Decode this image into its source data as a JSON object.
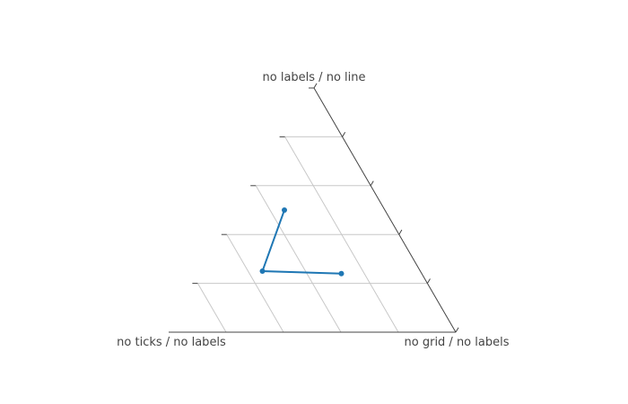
{
  "chart_data": {
    "type": "ternary-scatter",
    "colors": {
      "trace": "#1f77b4",
      "axis": "#444444",
      "grid": "#c8c8c8",
      "background": "#ffffff"
    },
    "axes": {
      "a": {
        "title": "no labels / no line",
        "ticks": [
          0.2,
          0.4,
          0.6,
          0.8
        ],
        "grid": true,
        "showline": false,
        "ticklabels": false
      },
      "b": {
        "title": "no ticks / no labels",
        "ticks": [
          0.2,
          0.4,
          0.6,
          0.8
        ],
        "grid": true,
        "showline": true,
        "showticks": false,
        "ticklabels": false
      },
      "c": {
        "title": "no grid / no labels",
        "ticks": [
          0.2,
          0.4,
          0.6,
          0.8
        ],
        "grid": false,
        "showline": true,
        "ticklabels": false
      }
    },
    "series": [
      {
        "mode": "lines+markers",
        "a": [
          0.5,
          0.25,
          0.24
        ],
        "b": [
          0.35,
          0.55,
          0.28
        ],
        "c": [
          0.15,
          0.2,
          0.48
        ]
      }
    ]
  }
}
